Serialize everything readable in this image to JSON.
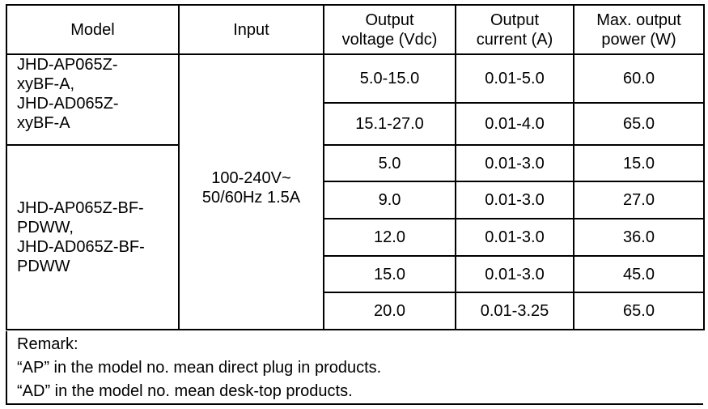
{
  "headers": {
    "model": "Model",
    "input": "Input",
    "voltage_l1": "Output",
    "voltage_l2": "voltage (Vdc)",
    "current_l1": "Output",
    "current_l2": "current (A)",
    "power_l1": "Max. output",
    "power_l2": "power (W)"
  },
  "input": {
    "l1": "100-240V~",
    "l2": "50/60Hz 1.5A"
  },
  "groups": [
    {
      "model_lines": [
        "JHD-AP065Z-",
        "xyBF-A,",
        "JHD-AD065Z-",
        "xyBF-A"
      ],
      "rows": [
        {
          "voltage": "5.0-15.0",
          "current": "0.01-5.0",
          "power": "60.0"
        },
        {
          "voltage": "15.1-27.0",
          "current": "0.01-4.0",
          "power": "65.0"
        }
      ]
    },
    {
      "model_lines": [
        "JHD-AP065Z-BF-",
        "PDWW,",
        "JHD-AD065Z-BF-",
        "PDWW"
      ],
      "rows": [
        {
          "voltage": "5.0",
          "current": "0.01-3.0",
          "power": "15.0"
        },
        {
          "voltage": "9.0",
          "current": "0.01-3.0",
          "power": "27.0"
        },
        {
          "voltage": "12.0",
          "current": "0.01-3.0",
          "power": "36.0"
        },
        {
          "voltage": "15.0",
          "current": "0.01-3.0",
          "power": "45.0"
        },
        {
          "voltage": "20.0",
          "current": "0.01-3.25",
          "power": "65.0"
        }
      ]
    }
  ],
  "remark": {
    "title": "Remark:",
    "lines": [
      "“AP” in the model no. mean direct plug in products.",
      "“AD” in the model no. mean desk-top products."
    ]
  }
}
